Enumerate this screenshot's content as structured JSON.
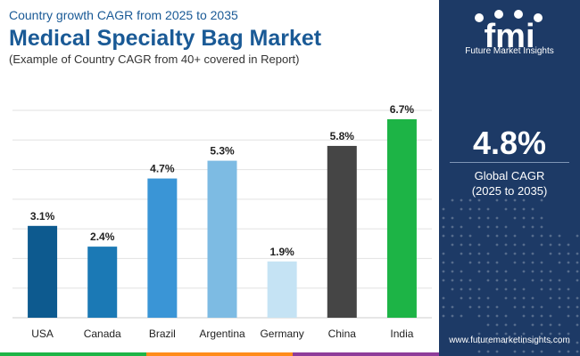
{
  "header": {
    "top_line": "Country growth CAGR from 2025 to 2035",
    "title": "Medical Specialty Bag Market",
    "subtitle": "(Example of Country CAGR from 40+ covered in Report)"
  },
  "chart_data": {
    "type": "bar",
    "categories": [
      "USA",
      "Canada",
      "Brazil",
      "Argentina",
      "Germany",
      "China",
      "India"
    ],
    "values": [
      3.1,
      2.4,
      4.7,
      5.3,
      1.9,
      5.8,
      6.7
    ],
    "value_labels": [
      "3.1%",
      "2.4%",
      "4.7%",
      "5.3%",
      "1.9%",
      "5.8%",
      "6.7%"
    ],
    "colors": [
      "#0d5a8f",
      "#1b79b5",
      "#3a95d6",
      "#7dbbe3",
      "#c5e3f4",
      "#454545",
      "#1db446"
    ],
    "ylim": [
      0,
      7
    ],
    "grid": true,
    "legend": "none"
  },
  "panel": {
    "brand": "Future Market Insights",
    "cagr_value": "4.8%",
    "cagr_label_line1": "Global CAGR",
    "cagr_label_line2": "(2025 to 2035)",
    "website": "www.futuremarketinsights.com",
    "logo_text": "fmi"
  },
  "bottom_bar_colors": [
    "#1db446",
    "#ff8c1a",
    "#8e3c9a"
  ]
}
